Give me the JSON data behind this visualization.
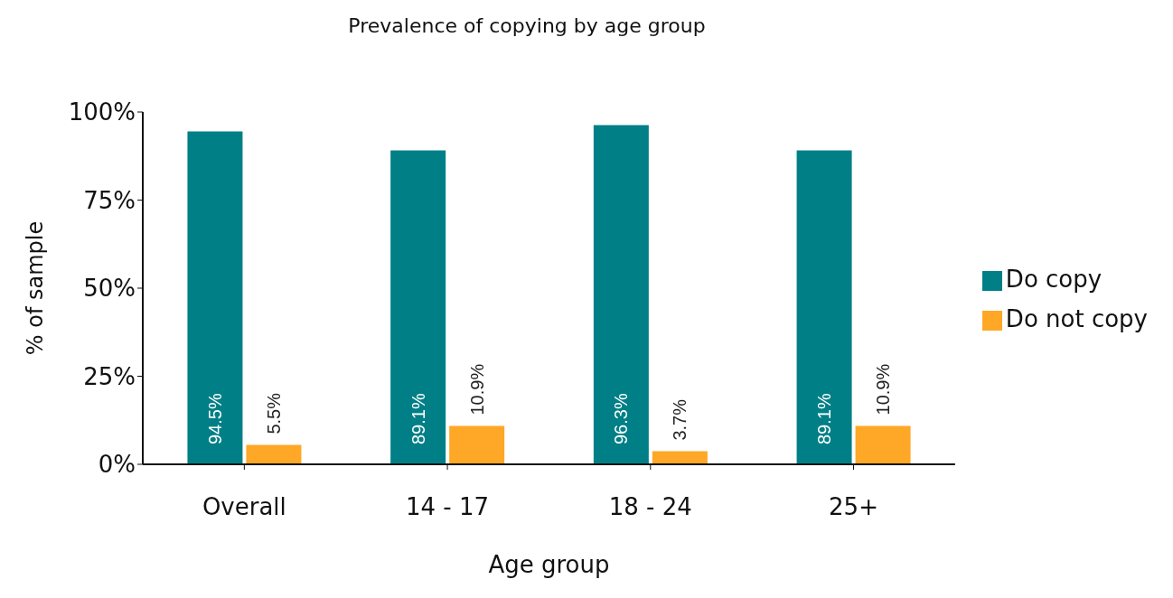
{
  "chart_data": {
    "type": "bar",
    "title": "Prevalence of copying by age group",
    "xlabel": "Age group",
    "ylabel": "% of sample",
    "categories": [
      "Overall",
      "14 - 17",
      "18 - 24",
      "25+"
    ],
    "series": [
      {
        "name": "Do copy",
        "color": "#007f86",
        "values": [
          94.5,
          89.1,
          96.3,
          89.1
        ],
        "value_labels": [
          "94.5%",
          "89.1%",
          "96.3%",
          "89.1%"
        ]
      },
      {
        "name": "Do not copy",
        "color": "#ffa726",
        "values": [
          5.5,
          10.9,
          3.7,
          10.9
        ],
        "value_labels": [
          "5.5%",
          "10.9%",
          "3.7%",
          "10.9%"
        ]
      }
    ],
    "ylim": [
      0,
      100
    ],
    "yticks": [
      {
        "value": 0,
        "label": "0%"
      },
      {
        "value": 25,
        "label": "25%"
      },
      {
        "value": 50,
        "label": "50%"
      },
      {
        "value": 75,
        "label": "75%"
      },
      {
        "value": 100,
        "label": "100%"
      }
    ],
    "grid": false,
    "legend": "right"
  }
}
